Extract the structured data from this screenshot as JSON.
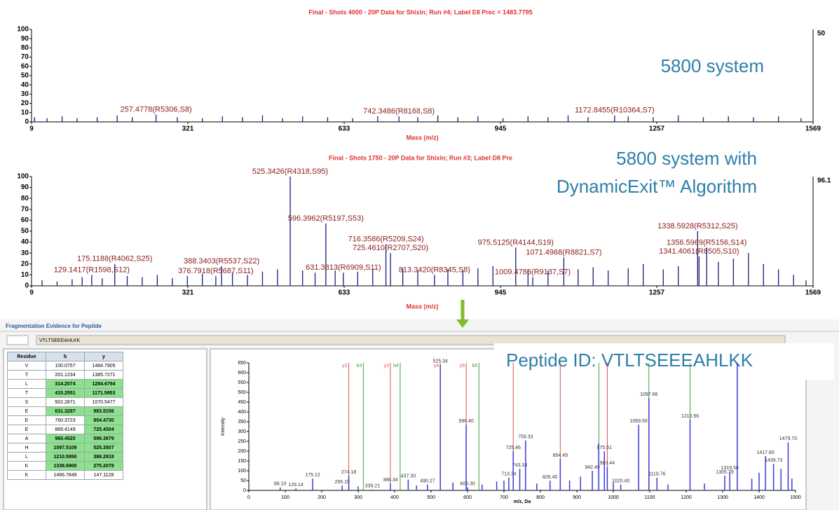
{
  "chart_data": [
    {
      "type": "stem",
      "title": "Final - Shots 4000 - 20P Data for Shixin; Run #4; Label E8 Prec = 1483.7795",
      "x_label": "Mass (m/z)",
      "right_label": "50",
      "annotation": [
        "5800 system"
      ],
      "color": "#1a1a80",
      "xlim": [
        9,
        1569
      ],
      "xticks": [
        9,
        321,
        633,
        945,
        1257,
        1569
      ],
      "ylim": [
        0,
        100
      ],
      "yticks": [
        0,
        10,
        20,
        30,
        40,
        50,
        60,
        70,
        80,
        90,
        100
      ],
      "x": [
        15,
        40,
        70,
        100,
        140,
        180,
        210,
        257.4778,
        300,
        350,
        390,
        430,
        470,
        510,
        550,
        600,
        650,
        700,
        742.3486,
        780,
        820,
        860,
        900,
        950,
        1000,
        1040,
        1080,
        1120,
        1172.8455,
        1200,
        1250,
        1300,
        1350,
        1400,
        1450,
        1500,
        1545
      ],
      "values": [
        5,
        4,
        6,
        4,
        5,
        7,
        5,
        8,
        5,
        4,
        6,
        5,
        7,
        4,
        6,
        5,
        4,
        6,
        6,
        5,
        7,
        5,
        6,
        4,
        6,
        5,
        7,
        5,
        7,
        6,
        5,
        7,
        5,
        6,
        5,
        6,
        4
      ],
      "peak_labels": [
        null,
        null,
        null,
        null,
        null,
        null,
        null,
        "257.4778(R5306,S8)",
        null,
        null,
        null,
        null,
        null,
        null,
        null,
        null,
        null,
        null,
        "742.3486(R8168,S8)",
        null,
        null,
        null,
        null,
        null,
        null,
        null,
        null,
        null,
        "1172.8455(R10364,S7)",
        null,
        null,
        null,
        null,
        null,
        null,
        null,
        null
      ]
    },
    {
      "type": "stem",
      "title": "Final - Shots 1750 - 20P Data for Shixin; Run #3; Label D8 Pre",
      "x_label": "Mass (m/z)",
      "right_label": "96.1",
      "annotation": [
        "5800 system with",
        "DynamicExit™ Algorithm"
      ],
      "color": "#1a1a80",
      "xlim": [
        9,
        1569
      ],
      "xticks": [
        9,
        321,
        633,
        945,
        1257,
        1569
      ],
      "ylim": [
        0,
        100
      ],
      "yticks": [
        0,
        10,
        20,
        30,
        40,
        50,
        60,
        70,
        80,
        90,
        100
      ],
      "x": [
        30,
        60,
        90,
        110,
        129.1417,
        150,
        175.1188,
        200,
        230,
        260,
        290,
        320,
        350,
        376.7918,
        388.3403,
        410,
        440,
        470,
        500,
        525.3426,
        550,
        575,
        596.3962,
        615,
        631.3813,
        660,
        690,
        716.3586,
        725.461,
        750,
        780,
        813.342,
        840,
        870,
        900,
        930,
        975.5125,
        1000,
        1009.4786,
        1040,
        1071.4968,
        1100,
        1130,
        1160,
        1200,
        1230,
        1270,
        1300,
        1338.5928,
        1341.4061,
        1356.5969,
        1380,
        1410,
        1440,
        1470,
        1500,
        1530,
        1555
      ],
      "values": [
        5,
        4,
        6,
        8,
        10,
        7,
        20,
        9,
        8,
        10,
        7,
        9,
        11,
        9,
        18,
        12,
        10,
        13,
        15,
        100,
        14,
        12,
        57,
        14,
        12,
        13,
        15,
        38,
        30,
        16,
        14,
        10,
        15,
        14,
        16,
        18,
        35,
        15,
        8,
        14,
        26,
        15,
        17,
        14,
        16,
        20,
        15,
        18,
        50,
        27,
        35,
        22,
        25,
        30,
        20,
        15,
        10,
        5
      ],
      "peak_labels": [
        null,
        null,
        null,
        null,
        "129.1417(R1598,S12)",
        null,
        "175.1188(R4062,S25)",
        null,
        null,
        null,
        null,
        null,
        null,
        "376.7918(R5687,S11)",
        "388.3403(R5537,S22)",
        null,
        null,
        null,
        null,
        "525.3426(R4318,S95)",
        null,
        null,
        "596.3962(R5197,S53)",
        null,
        "631.3813(R6909,S11)",
        null,
        null,
        "716.3586(R5209,S24)",
        "725.4610(R2707,S20)",
        null,
        null,
        "813.3420(R8345,S8)",
        null,
        null,
        null,
        null,
        "975.5125(R4144,S19)",
        null,
        "1009.4786(R9137,S7)",
        null,
        "1071.4968(R8821,S7)",
        null,
        null,
        null,
        null,
        null,
        null,
        null,
        "1338.5928(R5312,S25)",
        "1341.4061(R8505,S10)",
        "1356.5969(R5156,S14)",
        null,
        null,
        null,
        null,
        null,
        null,
        null
      ]
    },
    {
      "type": "stem",
      "x_label": "m/z, Da",
      "y_label": "Intensity",
      "color": "#3a3adc",
      "xlim": [
        0,
        1500
      ],
      "xticks": [
        0,
        100,
        200,
        300,
        400,
        500,
        600,
        700,
        800,
        900,
        1000,
        1100,
        1200,
        1300,
        1400,
        1500
      ],
      "ylim": [
        0,
        650
      ],
      "yticks": [
        0,
        50,
        100,
        150,
        200,
        250,
        300,
        350,
        400,
        450,
        500,
        550,
        600,
        650
      ],
      "x": [
        86.1,
        129.14,
        175.12,
        256.15,
        274.18,
        300,
        339.21,
        388.34,
        437.3,
        460,
        490.27,
        525.34,
        560,
        596.4,
        600.3,
        640,
        680,
        700,
        713.34,
        725.46,
        743.34,
        759.33,
        790,
        826.4,
        854.49,
        880,
        910,
        942.49,
        960,
        975.51,
        983.44,
        1000,
        1020.4,
        1069.5,
        1097.66,
        1119.76,
        1150,
        1210.56,
        1250,
        1305.79,
        1319.58,
        1340,
        1380,
        1400,
        1417.6,
        1439.73,
        1460,
        1479.7,
        1490
      ],
      "values": [
        15,
        10,
        60,
        25,
        75,
        20,
        5,
        35,
        55,
        25,
        30,
        640,
        40,
        335,
        15,
        30,
        45,
        50,
        65,
        200,
        110,
        255,
        35,
        50,
        160,
        50,
        70,
        100,
        240,
        200,
        120,
        40,
        30,
        335,
        470,
        65,
        30,
        360,
        35,
        75,
        95,
        650,
        60,
        90,
        175,
        135,
        110,
        245,
        60
      ],
      "peak_labels": [
        "86.10",
        "129.14",
        "175.12",
        "256.15",
        "274.18",
        null,
        "339.21",
        "388.34",
        "437.30",
        null,
        "490.27",
        "525.34",
        null,
        "596.40",
        "600.30",
        null,
        null,
        null,
        "713.34",
        "725.46",
        "743.34",
        "759.33",
        null,
        "826.40",
        "854.49",
        null,
        null,
        "942.49",
        null,
        "975.51",
        "983.44",
        null,
        "1020.40",
        "1069.50",
        "1097.66",
        "1119.76",
        null,
        "1210.56",
        null,
        "1305.79",
        "1319.58",
        null,
        null,
        null,
        "1417.60",
        "1439.73",
        null,
        "1479.70",
        null
      ],
      "ion_lines": [
        {
          "x": 274.18,
          "color": "#e05050",
          "label": "y2"
        },
        {
          "x": 314.21,
          "color": "#40a040",
          "label": "b3"
        },
        {
          "x": 388.34,
          "color": "#e05050",
          "label": "y3"
        },
        {
          "x": 415.26,
          "color": "#40a040",
          "label": "b4"
        },
        {
          "x": 525.34,
          "color": "#e05050",
          "label": "y4"
        },
        {
          "x": 596.4,
          "color": "#e05050",
          "label": "y5"
        },
        {
          "x": 631.33,
          "color": "#40a040",
          "label": "b5"
        },
        {
          "x": 725.46,
          "color": "#e05050"
        },
        {
          "x": 854.47,
          "color": "#e05050"
        },
        {
          "x": 960.45,
          "color": "#40a040"
        },
        {
          "x": 983.52,
          "color": "#e05050"
        },
        {
          "x": 1097.51,
          "color": "#40a040"
        },
        {
          "x": 1210.6,
          "color": "#40a040"
        }
      ]
    }
  ],
  "panel": {
    "title": "Fragmentation Evidence for Peptide",
    "sequence": "VTLTSEEEAHLKK",
    "peptide_id": "Peptide ID:  VTLTSEEEAHLKK"
  },
  "table": {
    "header": [
      "Residue",
      "b",
      "y"
    ],
    "rows": [
      [
        "V",
        "100.0757",
        "1484.7905"
      ],
      [
        "T",
        "201.1234",
        "1385.7271"
      ],
      [
        "L",
        "314.2074",
        "1284.6794"
      ],
      [
        "T",
        "415.2551",
        "1171.5953"
      ],
      [
        "S",
        "502.2871",
        "1070.5477"
      ],
      [
        "E",
        "631.3297",
        "983.5156"
      ],
      [
        "E",
        "760.3723",
        "854.4730"
      ],
      [
        "E",
        "889.4149",
        "725.4304"
      ],
      [
        "A",
        "960.4520",
        "596.3879"
      ],
      [
        "H",
        "1097.5109",
        "525.3507"
      ],
      [
        "L",
        "1210.5950",
        "388.2918"
      ],
      [
        "K",
        "1338.6900",
        "275.2078"
      ],
      [
        "K",
        "1466.7849",
        "147.1128"
      ]
    ],
    "highlight_b": [
      false,
      false,
      true,
      true,
      false,
      true,
      false,
      false,
      true,
      true,
      true,
      true,
      false
    ],
    "highlight_y": [
      false,
      false,
      true,
      true,
      false,
      true,
      true,
      true,
      true,
      true,
      true,
      true,
      false
    ]
  }
}
